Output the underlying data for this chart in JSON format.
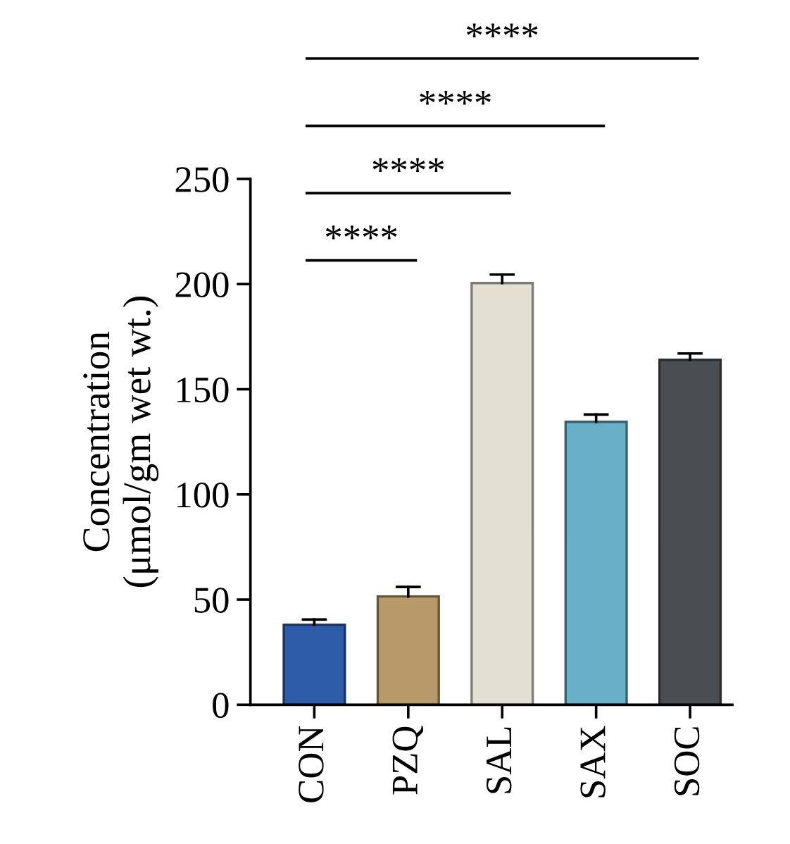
{
  "chart_data": {
    "type": "bar",
    "ylabel": "Concentration\n(μmol/gm wet wt.)",
    "categories": [
      "CON",
      "PZQ",
      "SAL",
      "SAX",
      "SOC"
    ],
    "values": [
      38,
      51.5,
      200.5,
      134.5,
      164
    ],
    "errors": [
      [
        38,
        40.5
      ],
      [
        51.5,
        56
      ],
      [
        200.5,
        204.5
      ],
      [
        134.5,
        138
      ],
      [
        164,
        167
      ]
    ],
    "colors": [
      "#2f5ca8",
      "#b89a6a",
      "#e3dfd3",
      "#6aafc8",
      "#4a4e52"
    ],
    "ylim": [
      0,
      250
    ],
    "yticks": [
      0,
      50,
      100,
      150,
      200,
      250
    ],
    "grid": false,
    "legend": false,
    "annotations": [
      "****",
      "****",
      "****",
      "****"
    ]
  }
}
